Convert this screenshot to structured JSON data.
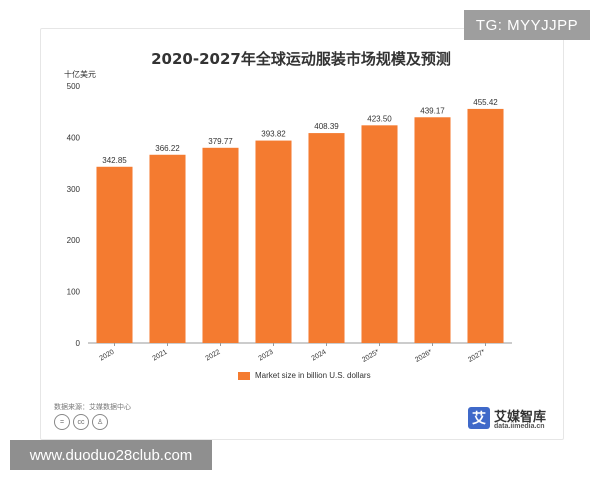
{
  "watermark_top": "TG: MYYJJPP",
  "watermark_bottom": "www.duoduo28club.com",
  "source_text": "数据来源：艾媒数据中心",
  "brand": {
    "name": "艾媒智库",
    "url": "data.iimedia.cn",
    "logo_char": "艾"
  },
  "colors": {
    "bar": "#f47b30",
    "axis": "#999999",
    "grid": "#e6e6e6"
  },
  "chart_data": {
    "type": "bar",
    "title": "2020-2027年全球运动服装市场规模及预测",
    "unit_label": "十亿美元",
    "categories": [
      "2020",
      "2021",
      "2022",
      "2023",
      "2024",
      "2025*",
      "2026*",
      "2027*"
    ],
    "series": [
      {
        "name": "Market size in billion U.S. dollars",
        "values": [
          342.85,
          366.22,
          379.77,
          393.82,
          408.39,
          423.5,
          439.17,
          455.42
        ]
      }
    ],
    "value_labels": [
      "342.85",
      "366.22",
      "379.77",
      "393.82",
      "408.39",
      "423.50",
      "439.17",
      "455.42"
    ],
    "y_ticks": [
      0,
      100,
      200,
      300,
      400,
      500
    ],
    "ylim": [
      0,
      500
    ],
    "grid": false,
    "legend_position": "bottom"
  }
}
